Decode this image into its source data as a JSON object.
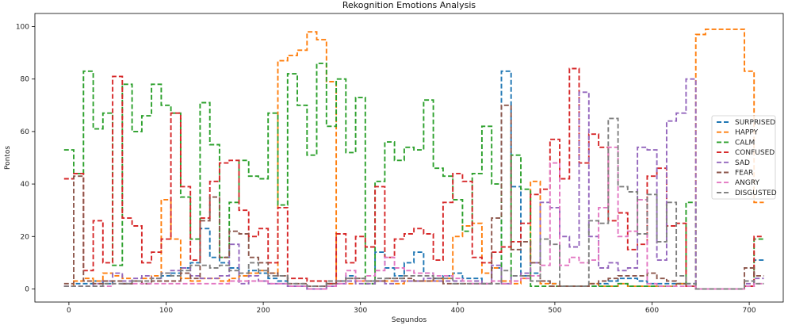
{
  "chart_data": {
    "type": "line",
    "step": true,
    "title": "Rekognition Emotions Analysis",
    "xlabel": "Segundos",
    "ylabel": "Pontos",
    "xlim": [
      -35,
      735
    ],
    "ylim": [
      -5,
      105
    ],
    "xticks": [
      0,
      100,
      200,
      300,
      400,
      500,
      600,
      700
    ],
    "yticks": [
      0,
      20,
      40,
      60,
      80,
      100
    ],
    "legend_position": "center-right",
    "x": [
      0,
      10,
      20,
      30,
      40,
      50,
      60,
      70,
      80,
      90,
      100,
      110,
      120,
      130,
      140,
      150,
      160,
      170,
      180,
      190,
      200,
      210,
      220,
      230,
      240,
      250,
      260,
      270,
      280,
      290,
      300,
      310,
      320,
      330,
      340,
      350,
      360,
      370,
      380,
      390,
      400,
      410,
      420,
      430,
      440,
      450,
      460,
      470,
      480,
      490,
      500,
      510,
      520,
      530,
      540,
      550,
      560,
      570,
      580,
      590,
      600,
      610,
      620,
      630,
      640,
      650,
      660,
      670,
      680,
      690,
      700,
      710
    ],
    "series": [
      {
        "name": "SURPRISED",
        "color": "#1f77b4",
        "values": [
          1,
          2,
          2,
          3,
          2,
          3,
          2,
          3,
          2,
          3,
          5,
          6,
          8,
          10,
          23,
          12,
          10,
          8,
          5,
          7,
          6,
          4,
          3,
          1,
          1,
          0,
          0,
          2,
          3,
          5,
          3,
          3,
          14,
          8,
          5,
          10,
          14,
          6,
          4,
          5,
          6,
          4,
          4,
          2,
          8,
          83,
          39,
          5,
          6,
          3,
          2,
          1,
          1,
          1,
          1,
          2,
          3,
          4,
          4,
          3,
          2,
          2,
          2,
          2,
          2,
          0,
          0,
          0,
          0,
          0,
          1,
          11
        ]
      },
      {
        "name": "HAPPY",
        "color": "#ff7f0e",
        "values": [
          1,
          3,
          4,
          3,
          6,
          5,
          4,
          3,
          4,
          5,
          34,
          19,
          4,
          3,
          4,
          4,
          3,
          4,
          5,
          6,
          7,
          6,
          87,
          89,
          91,
          98,
          95,
          79,
          3,
          2,
          3,
          2,
          3,
          3,
          2,
          3,
          3,
          3,
          3,
          4,
          20,
          24,
          25,
          6,
          8,
          3,
          2,
          4,
          41,
          2,
          2,
          1,
          1,
          1,
          2,
          1,
          1,
          2,
          1,
          1,
          1,
          1,
          1,
          2,
          1,
          97,
          99,
          99,
          99,
          99,
          83,
          33
        ]
      },
      {
        "name": "CALM",
        "color": "#2ca02c",
        "values": [
          53,
          44,
          83,
          61,
          67,
          9,
          78,
          60,
          66,
          78,
          70,
          67,
          35,
          19,
          71,
          55,
          12,
          33,
          49,
          43,
          42,
          67,
          32,
          82,
          70,
          51,
          86,
          62,
          80,
          52,
          73,
          2,
          41,
          56,
          49,
          54,
          53,
          72,
          46,
          43,
          34,
          22,
          44,
          62,
          40,
          2,
          51,
          38,
          1,
          1,
          1,
          1,
          1,
          1,
          1,
          1,
          1,
          2,
          1,
          1,
          1,
          1,
          1,
          2,
          33,
          0,
          0,
          0,
          0,
          0,
          1,
          19
        ]
      },
      {
        "name": "CONFUSED",
        "color": "#d62728",
        "values": [
          42,
          44,
          7,
          26,
          10,
          81,
          27,
          24,
          10,
          14,
          19,
          67,
          39,
          11,
          27,
          41,
          48,
          49,
          30,
          20,
          23,
          10,
          31,
          4,
          4,
          3,
          3,
          2,
          21,
          10,
          20,
          16,
          39,
          12,
          19,
          21,
          23,
          21,
          11,
          33,
          44,
          41,
          12,
          10,
          14,
          16,
          18,
          25,
          36,
          38,
          57,
          42,
          84,
          48,
          59,
          54,
          26,
          29,
          15,
          17,
          43,
          46,
          24,
          25,
          1,
          0,
          0,
          0,
          0,
          0,
          1,
          20
        ]
      },
      {
        "name": "SAD",
        "color": "#9467bd",
        "values": [
          1,
          1,
          1,
          2,
          3,
          6,
          3,
          4,
          5,
          4,
          6,
          7,
          8,
          5,
          4,
          4,
          5,
          17,
          2,
          5,
          3,
          2,
          2,
          1,
          1,
          0,
          0,
          1,
          2,
          3,
          2,
          2,
          3,
          2,
          3,
          3,
          3,
          4,
          3,
          3,
          3,
          3,
          3,
          2,
          9,
          2,
          5,
          6,
          10,
          33,
          31,
          20,
          16,
          75,
          20,
          8,
          10,
          7,
          8,
          54,
          53,
          11,
          64,
          67,
          80,
          0,
          0,
          0,
          0,
          0,
          2,
          4
        ]
      },
      {
        "name": "FEAR",
        "color": "#8c564b",
        "values": [
          2,
          43,
          3,
          2,
          3,
          3,
          2,
          3,
          2,
          3,
          3,
          3,
          6,
          4,
          26,
          35,
          12,
          22,
          21,
          12,
          10,
          6,
          5,
          2,
          2,
          1,
          1,
          2,
          3,
          4,
          4,
          3,
          3,
          4,
          4,
          4,
          3,
          3,
          4,
          2,
          2,
          2,
          2,
          2,
          27,
          70,
          15,
          18,
          10,
          3,
          1,
          1,
          1,
          1,
          2,
          3,
          4,
          5,
          5,
          5,
          6,
          4,
          3,
          2,
          1,
          0,
          0,
          0,
          0,
          0,
          8,
          5
        ]
      },
      {
        "name": "ANGRY",
        "color": "#e377c2",
        "values": [
          1,
          1,
          1,
          1,
          1,
          2,
          2,
          2,
          2,
          2,
          2,
          2,
          2,
          2,
          2,
          2,
          2,
          3,
          3,
          3,
          3,
          2,
          2,
          1,
          1,
          0,
          0,
          1,
          2,
          7,
          3,
          5,
          7,
          12,
          8,
          7,
          6,
          6,
          5,
          5,
          4,
          3,
          2,
          2,
          3,
          2,
          3,
          4,
          5,
          9,
          48,
          9,
          12,
          10,
          11,
          31,
          54,
          20,
          22,
          34,
          2,
          1,
          1,
          1,
          1,
          0,
          0,
          0,
          0,
          0,
          1,
          2
        ]
      },
      {
        "name": "DISGUSTED",
        "color": "#7f7f7f",
        "values": [
          1,
          1,
          1,
          1,
          2,
          2,
          2,
          3,
          3,
          4,
          6,
          5,
          7,
          9,
          9,
          8,
          9,
          7,
          6,
          10,
          7,
          5,
          5,
          2,
          2,
          1,
          1,
          3,
          3,
          4,
          4,
          3,
          4,
          4,
          4,
          5,
          5,
          5,
          4,
          4,
          2,
          2,
          2,
          2,
          2,
          7,
          5,
          5,
          3,
          19,
          17,
          1,
          1,
          1,
          26,
          25,
          65,
          39,
          37,
          21,
          36,
          18,
          33,
          5,
          2,
          0,
          0,
          0,
          0,
          0,
          3,
          2
        ]
      }
    ]
  }
}
